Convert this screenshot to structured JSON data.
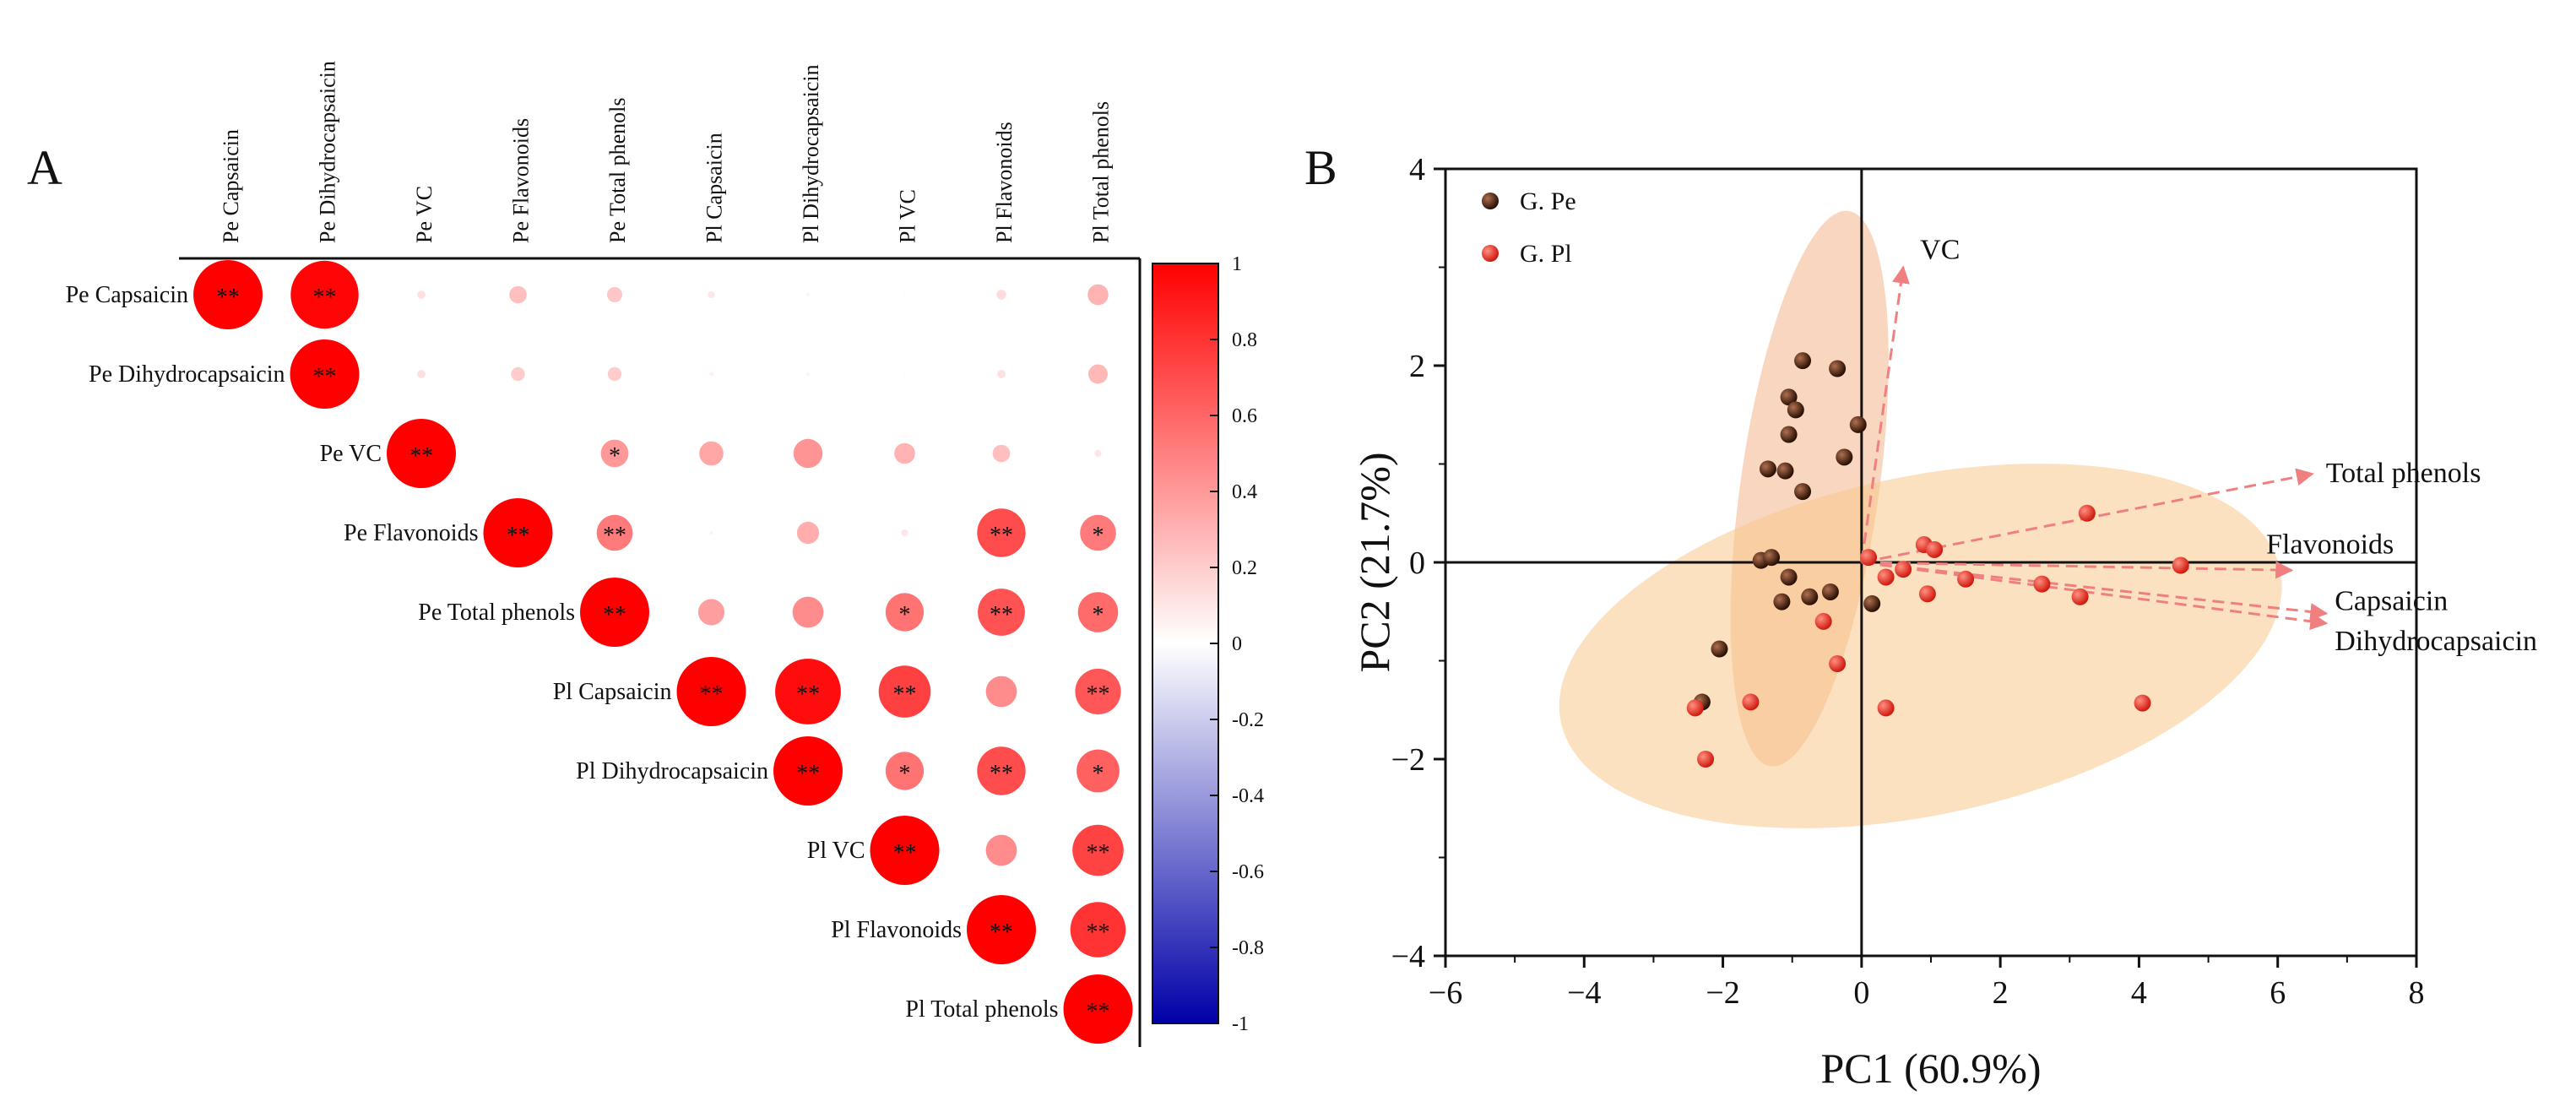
{
  "chart_data": [
    {
      "type": "heatmap",
      "panel_label": "A",
      "subtype": "correlation-circle-upper-triangle",
      "variables": [
        "Pe Capsaicin",
        "Pe Dihydrocapsaicin",
        "Pe VC",
        "Pe Flavonoids",
        "Pe Total phenols",
        "Pl Capsaicin",
        "Pl Dihydrocapsaicin",
        "Pl VC",
        "Pl Flavonoids",
        "Pl Total phenols"
      ],
      "matrix": [
        [
          1.0,
          0.98,
          0.12,
          0.25,
          0.22,
          0.1,
          0.05,
          0.03,
          0.14,
          0.3
        ],
        [
          null,
          1.0,
          0.12,
          0.2,
          0.2,
          0.06,
          0.05,
          0.03,
          0.12,
          0.28
        ],
        [
          null,
          null,
          1.0,
          0.0,
          0.4,
          0.35,
          0.42,
          0.3,
          0.25,
          0.1
        ],
        [
          null,
          null,
          null,
          1.0,
          0.52,
          0.05,
          0.32,
          0.1,
          0.7,
          0.52
        ],
        [
          null,
          null,
          null,
          null,
          1.0,
          0.38,
          0.45,
          0.55,
          0.68,
          0.58
        ],
        [
          null,
          null,
          null,
          null,
          null,
          1.0,
          0.95,
          0.75,
          0.45,
          0.66
        ],
        [
          null,
          null,
          null,
          null,
          null,
          null,
          1.0,
          0.55,
          0.7,
          0.62
        ],
        [
          null,
          null,
          null,
          null,
          null,
          null,
          null,
          1.0,
          0.45,
          0.74
        ],
        [
          null,
          null,
          null,
          null,
          null,
          null,
          null,
          null,
          1.0,
          0.8
        ],
        [
          null,
          null,
          null,
          null,
          null,
          null,
          null,
          null,
          null,
          1.0
        ]
      ],
      "significance": [
        [
          "**",
          "**",
          "",
          "",
          "",
          "",
          "",
          "",
          "",
          ""
        ],
        [
          "",
          "**",
          "",
          "",
          "",
          "",
          "",
          "",
          "",
          ""
        ],
        [
          "",
          "",
          "**",
          "",
          "*",
          "",
          "",
          "",
          "",
          ""
        ],
        [
          "",
          "",
          "",
          "**",
          "**",
          "",
          "",
          "",
          "**",
          "*"
        ],
        [
          "",
          "",
          "",
          "",
          "**",
          "",
          "",
          "*",
          "**",
          "*"
        ],
        [
          "",
          "",
          "",
          "",
          "",
          "**",
          "**",
          "**",
          "",
          "**"
        ],
        [
          "",
          "",
          "",
          "",
          "",
          "",
          "**",
          "*",
          "**",
          "*"
        ],
        [
          "",
          "",
          "",
          "",
          "",
          "",
          "",
          "**",
          "",
          "**"
        ],
        [
          "",
          "",
          "",
          "",
          "",
          "",
          "",
          "",
          "**",
          "**"
        ],
        [
          "",
          "",
          "",
          "",
          "",
          "",
          "",
          "",
          "",
          "**"
        ]
      ],
      "colorbar": {
        "min": -1,
        "max": 1,
        "ticks": [
          "1",
          "0.8",
          "0.6",
          "0.4",
          "0.2",
          "0",
          "-0.2",
          "-0.4",
          "-0.6",
          "-0.8",
          "-1"
        ],
        "colors": {
          "neg": "#0000a8",
          "mid": "#ffffff",
          "pos": "#ff0000"
        }
      }
    },
    {
      "type": "scatter",
      "panel_label": "B",
      "xlabel": "PC1 (60.9%)",
      "ylabel": "PC2 (21.7%)",
      "xlim": [
        -6,
        8
      ],
      "ylim": [
        -4,
        4
      ],
      "xticks": [
        "−6",
        "−4",
        "−2",
        "0",
        "2",
        "4",
        "6",
        "8"
      ],
      "yticks": [
        "−4",
        "−2",
        "0",
        "2",
        "4"
      ],
      "legend": [
        {
          "name": "G. Pe",
          "color": "#3a1a08"
        },
        {
          "name": "G. Pl",
          "color": "#e8281c"
        }
      ],
      "series": [
        {
          "name": "G. Pe",
          "color": "#3a1a08",
          "x": [
            -0.85,
            -0.35,
            -1.05,
            -0.95,
            -0.05,
            -1.05,
            -0.25,
            -1.35,
            -1.1,
            -0.85,
            -1.45,
            -1.3,
            -1.05,
            -0.75,
            -0.45,
            -1.15,
            0.15,
            -2.05,
            -2.3
          ],
          "y": [
            2.05,
            1.97,
            1.68,
            1.55,
            1.4,
            1.3,
            1.07,
            0.95,
            0.93,
            0.72,
            0.02,
            0.05,
            -0.15,
            -0.35,
            -0.3,
            -0.4,
            -0.42,
            -0.88,
            -1.42
          ]
        },
        {
          "name": "G. Pl",
          "color": "#e8281c",
          "x": [
            3.25,
            0.9,
            1.05,
            0.1,
            0.6,
            0.35,
            1.5,
            2.6,
            3.15,
            4.6,
            0.95,
            -0.55,
            -0.35,
            0.35,
            -1.6,
            -2.4,
            -2.25,
            4.05
          ],
          "y": [
            0.5,
            0.18,
            0.13,
            0.05,
            -0.07,
            -0.15,
            -0.17,
            -0.22,
            -0.35,
            -0.03,
            -0.32,
            -0.6,
            -1.03,
            -1.48,
            -1.42,
            -1.48,
            -2.0,
            -1.43
          ]
        }
      ],
      "loadings": [
        {
          "label": "VC",
          "x": 0.6,
          "y": 3.0
        },
        {
          "label": "Total phenols",
          "x": 6.5,
          "y": 0.9
        },
        {
          "label": "Flavonoids",
          "x": 6.2,
          "y": -0.08
        },
        {
          "label": "Capsaicin",
          "x": 6.7,
          "y": -0.52
        },
        {
          "label": "Dihydrocapsaicin",
          "x": 6.7,
          "y": -0.62
        }
      ],
      "ellipses": [
        {
          "name": "G. Pe",
          "cx": -0.75,
          "cy": 0.75,
          "rx": 1.0,
          "ry": 2.85,
          "angle_deg": -8,
          "color": "#f2b48a"
        },
        {
          "name": "G. Pl",
          "cx": 0.85,
          "cy": -0.85,
          "rx": 5.3,
          "ry": 1.72,
          "angle_deg": 12,
          "color": "#f7c98a"
        }
      ]
    }
  ]
}
